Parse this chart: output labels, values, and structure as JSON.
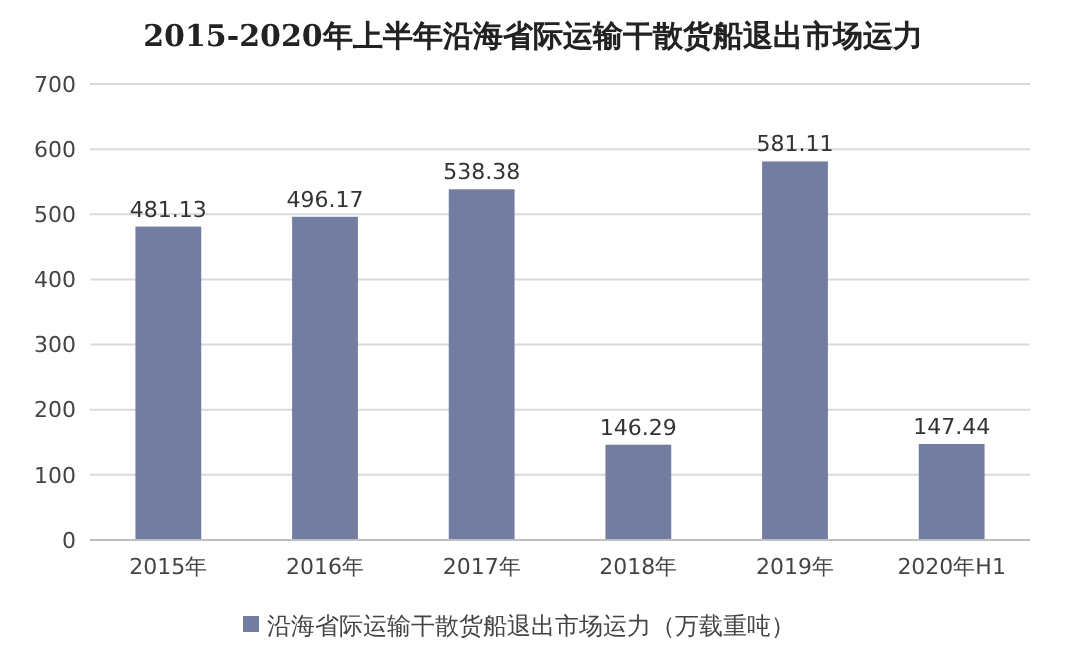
{
  "chart_data": {
    "type": "bar",
    "title": "2015-2020年上半年沿海省际运输干散货船退出市场运力",
    "categories": [
      "2015年",
      "2016年",
      "2017年",
      "2018年",
      "2019年",
      "2020年H1"
    ],
    "series": [
      {
        "name": "沿海省际运输干散货船退出市场运力（万载重吨）",
        "color": "#737ca1",
        "values": [
          481.13,
          496.17,
          538.38,
          146.29,
          581.11,
          147.44
        ]
      }
    ],
    "ylim": [
      0,
      700
    ],
    "yticks": [
      0,
      100,
      200,
      300,
      400,
      500,
      600,
      700
    ],
    "grid": "y",
    "legend": "bottom",
    "data_labels": true
  }
}
